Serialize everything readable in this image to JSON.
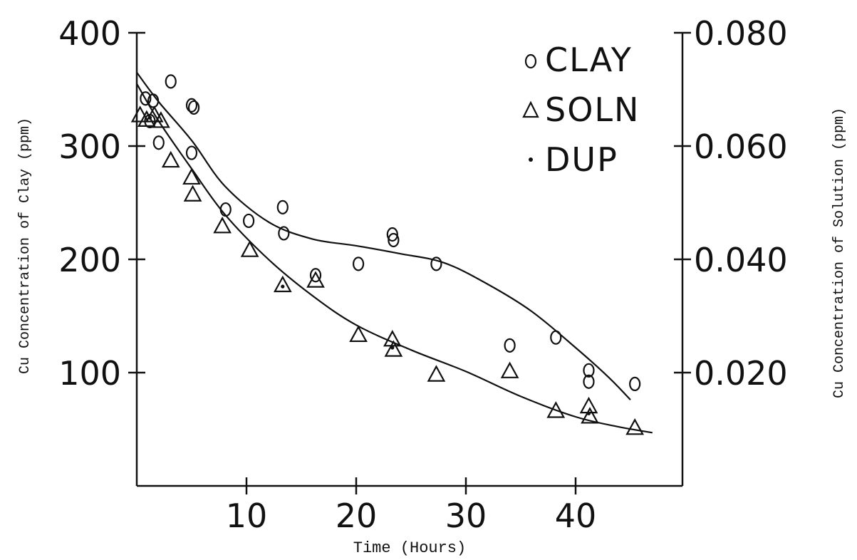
{
  "chart_data": {
    "type": "scatter",
    "xlabel": "Time (Hours)",
    "ylabel_left": "Cu Concentration of Clay (ppm)",
    "ylabel_right": "Cu Concentration of Solution (ppm)",
    "xlim": [
      0,
      50
    ],
    "ylim_left": [
      0,
      400
    ],
    "ylim_right": [
      0,
      0.08
    ],
    "x_ticks": [
      10,
      20,
      30,
      40
    ],
    "x_tick_labels": [
      "10",
      "20",
      "30",
      "40"
    ],
    "y_left_ticks": [
      100,
      200,
      300,
      400
    ],
    "y_left_tick_labels": [
      "100",
      "200",
      "300",
      "400"
    ],
    "y_right_ticks": [
      0.02,
      0.04,
      0.06,
      0.08
    ],
    "y_right_tick_labels": [
      "0.020",
      "0.040",
      "0.060",
      "0.080"
    ],
    "grid": false,
    "legend_position": "top-right",
    "legend": [
      {
        "marker": "circle",
        "label": "CLAY"
      },
      {
        "marker": "triangle",
        "label": "SOLN"
      },
      {
        "marker": "dot",
        "label": "DUP"
      }
    ],
    "series": [
      {
        "name": "CLAY",
        "axis": "left",
        "marker": "circle",
        "points": [
          {
            "x": 0.8,
            "y": 342
          },
          {
            "x": 1.5,
            "y": 340
          },
          {
            "x": 1.2,
            "y": 322
          },
          {
            "x": 2.0,
            "y": 303
          },
          {
            "x": 3.1,
            "y": 357
          },
          {
            "x": 5.0,
            "y": 336
          },
          {
            "x": 5.2,
            "y": 334
          },
          {
            "x": 5.0,
            "y": 294
          },
          {
            "x": 8.1,
            "y": 244
          },
          {
            "x": 10.2,
            "y": 234
          },
          {
            "x": 13.3,
            "y": 246
          },
          {
            "x": 13.4,
            "y": 223
          },
          {
            "x": 16.3,
            "y": 186
          },
          {
            "x": 20.2,
            "y": 196
          },
          {
            "x": 23.3,
            "y": 222
          },
          {
            "x": 23.4,
            "y": 217
          },
          {
            "x": 27.3,
            "y": 196
          },
          {
            "x": 34.0,
            "y": 124
          },
          {
            "x": 38.2,
            "y": 131
          },
          {
            "x": 41.2,
            "y": 102
          },
          {
            "x": 41.2,
            "y": 92
          },
          {
            "x": 45.4,
            "y": 90
          }
        ]
      },
      {
        "name": "SOLN",
        "axis": "left",
        "marker": "triangle",
        "points": [
          {
            "x": 0.3,
            "y": 328
          },
          {
            "x": 0.9,
            "y": 324
          },
          {
            "x": 1.6,
            "y": 328
          },
          {
            "x": 2.2,
            "y": 323
          },
          {
            "x": 3.1,
            "y": 288
          },
          {
            "x": 5.0,
            "y": 273
          },
          {
            "x": 5.1,
            "y": 258
          },
          {
            "x": 7.8,
            "y": 230
          },
          {
            "x": 10.3,
            "y": 209
          },
          {
            "x": 13.3,
            "y": 178
          },
          {
            "x": 16.3,
            "y": 182
          },
          {
            "x": 20.2,
            "y": 134
          },
          {
            "x": 23.3,
            "y": 130
          },
          {
            "x": 23.4,
            "y": 121
          },
          {
            "x": 27.3,
            "y": 99
          },
          {
            "x": 34.0,
            "y": 102
          },
          {
            "x": 38.2,
            "y": 67
          },
          {
            "x": 41.2,
            "y": 71
          },
          {
            "x": 41.3,
            "y": 62
          },
          {
            "x": 45.4,
            "y": 52
          }
        ]
      },
      {
        "name": "DUP",
        "axis": "left",
        "marker": "dot",
        "points": [
          {
            "x": 1.2,
            "y": 325
          },
          {
            "x": 13.3,
            "y": 176
          },
          {
            "x": 23.3,
            "y": 122
          },
          {
            "x": 41.2,
            "y": 64
          }
        ]
      }
    ],
    "fit_curves": [
      {
        "for": "CLAY",
        "points": [
          [
            0,
            365
          ],
          [
            2,
            339
          ],
          [
            5,
            305
          ],
          [
            8,
            265
          ],
          [
            12,
            233
          ],
          [
            16,
            218
          ],
          [
            20,
            212
          ],
          [
            24,
            205
          ],
          [
            28,
            197
          ],
          [
            32,
            178
          ],
          [
            36,
            154
          ],
          [
            40,
            122
          ],
          [
            43,
            96
          ],
          [
            45,
            76
          ]
        ]
      },
      {
        "for": "SOLN",
        "points": [
          [
            0,
            355
          ],
          [
            2,
            322
          ],
          [
            5,
            280
          ],
          [
            8,
            240
          ],
          [
            12,
            200
          ],
          [
            16,
            168
          ],
          [
            20,
            142
          ],
          [
            25,
            120
          ],
          [
            30,
            101
          ],
          [
            35,
            79
          ],
          [
            40,
            61
          ],
          [
            44,
            52
          ],
          [
            47,
            47
          ]
        ]
      }
    ]
  }
}
